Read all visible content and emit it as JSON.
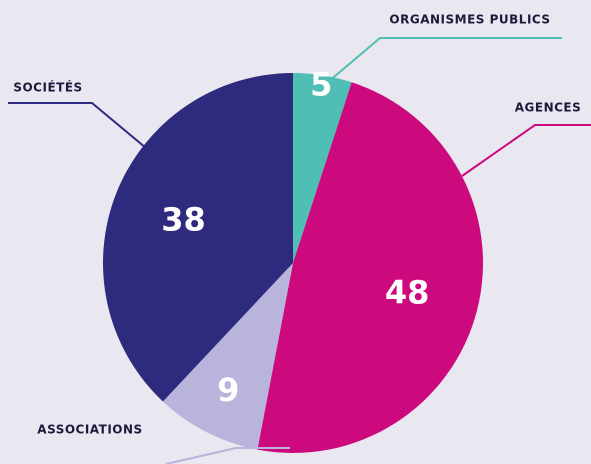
{
  "chart_data": {
    "type": "pie",
    "categories": [
      "ORGANISMES PUBLICS",
      "AGENCES",
      "ASSOCIATIONS",
      "SOCIÉTÉS"
    ],
    "values": [
      5,
      48,
      9,
      38
    ],
    "colors": [
      "#4fbfb5",
      "#cc0a7e",
      "#b8b4dc",
      "#2e2a7e"
    ]
  }
}
